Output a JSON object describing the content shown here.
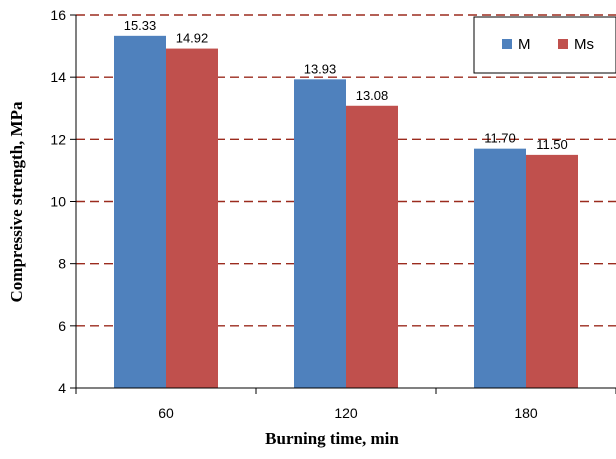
{
  "chart_data": {
    "type": "bar",
    "title": "",
    "xlabel": "Burning time, min",
    "ylabel": "Compressive strength, MPa",
    "categories": [
      "60",
      "120",
      "180"
    ],
    "series": [
      {
        "name": "M",
        "values": [
          15.33,
          13.93,
          11.7
        ],
        "labels": [
          "15.33",
          "13.93",
          "11.70"
        ],
        "color": "#4F81BD"
      },
      {
        "name": "Ms",
        "values": [
          14.92,
          13.08,
          11.5
        ],
        "labels": [
          "14.92",
          "13.08",
          "11.50"
        ],
        "color": "#C0504D"
      }
    ],
    "ylim": [
      4,
      16
    ],
    "yticks": [
      "4",
      "6",
      "8",
      "10",
      "12",
      "14",
      "16"
    ],
    "gridlines": {
      "on": true,
      "style": "dashed",
      "color": "#9B2B1E"
    },
    "legend": {
      "position": "top-right"
    }
  }
}
